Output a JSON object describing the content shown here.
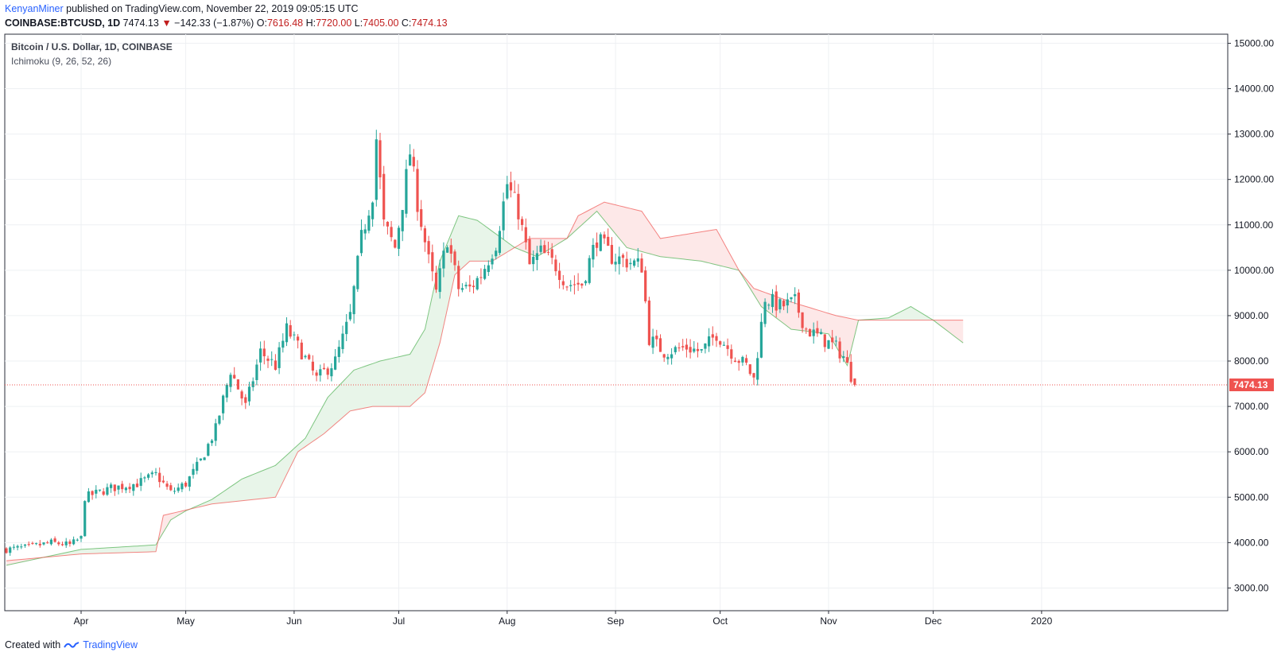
{
  "header": {
    "author": "KenyanMiner",
    "published_text": "published on TradingView.com, November 22, 2019 09:05:15 UTC",
    "symbol": "COINBASE:BTCUSD, 1D",
    "last": "7474.13",
    "change": "−142.33 (−1.87%)",
    "open_label": "O:",
    "open": "7616.48",
    "high_label": "H:",
    "high": "7720.00",
    "low_label": "L:",
    "low": "7405.00",
    "close_label": "C:",
    "close": "7474.13"
  },
  "legend": {
    "title": "Bitcoin / U.S. Dollar, 1D, COINBASE",
    "indicator": "Ichimoku (9, 26, 52, 26)"
  },
  "footer": {
    "created": "Created with",
    "brand": "TradingView"
  },
  "colors": {
    "up": "#26a69a",
    "down": "#ef5350",
    "cloud_up": "#e8f5e9",
    "cloud_down": "#fde8e8",
    "span_a": "#4caf50",
    "span_b": "#ef5350",
    "price_line": "#ef5350",
    "grid": "#eef0f3"
  },
  "chart_data": {
    "type": "candlestick",
    "title": "Bitcoin / U.S. Dollar, 1D, COINBASE",
    "ylim": [
      2500,
      15200
    ],
    "y_ticks": [
      "3000.00",
      "4000.00",
      "5000.00",
      "6000.00",
      "7000.00",
      "8000.00",
      "9000.00",
      "10000.00",
      "11000.00",
      "12000.00",
      "13000.00",
      "14000.00",
      "15000.00"
    ],
    "x_ticks": [
      "Apr",
      "May",
      "Jun",
      "Jul",
      "Aug",
      "Sep",
      "Oct",
      "Nov",
      "Dec",
      "2020"
    ],
    "last_price": "7474.13",
    "close_path": [
      [
        0,
        3850
      ],
      [
        6,
        3900
      ],
      [
        12,
        4000
      ],
      [
        17,
        3950
      ],
      [
        20,
        4100
      ],
      [
        21,
        5000
      ],
      [
        28,
        5200
      ],
      [
        35,
        5300
      ],
      [
        40,
        5500
      ],
      [
        44,
        5100
      ],
      [
        48,
        5300
      ],
      [
        52,
        5800
      ],
      [
        56,
        6500
      ],
      [
        60,
        7800
      ],
      [
        64,
        7000
      ],
      [
        68,
        8200
      ],
      [
        72,
        7900
      ],
      [
        75,
        8700
      ],
      [
        79,
        8200
      ],
      [
        83,
        7600
      ],
      [
        88,
        8000
      ],
      [
        92,
        9000
      ],
      [
        95,
        10700
      ],
      [
        98,
        11700
      ],
      [
        99,
        12900
      ],
      [
        101,
        11000
      ],
      [
        104,
        10500
      ],
      [
        106,
        11500
      ],
      [
        108,
        12600
      ],
      [
        110,
        11500
      ],
      [
        113,
        10200
      ],
      [
        115,
        9500
      ],
      [
        118,
        10700
      ],
      [
        121,
        9600
      ],
      [
        124,
        9600
      ],
      [
        127,
        9900
      ],
      [
        131,
        10600
      ],
      [
        134,
        11900
      ],
      [
        137,
        11300
      ],
      [
        140,
        10100
      ],
      [
        143,
        10400
      ],
      [
        147,
        10100
      ],
      [
        150,
        9700
      ],
      [
        154,
        9700
      ],
      [
        158,
        10700
      ],
      [
        162,
        10300
      ],
      [
        166,
        10200
      ],
      [
        170,
        10100
      ],
      [
        172,
        8500
      ],
      [
        176,
        8200
      ],
      [
        182,
        8300
      ],
      [
        186,
        8200
      ],
      [
        190,
        8600
      ],
      [
        195,
        8100
      ],
      [
        198,
        7900
      ],
      [
        200,
        7600
      ],
      [
        201,
        8200
      ],
      [
        203,
        9400
      ],
      [
        207,
        9200
      ],
      [
        211,
        9300
      ],
      [
        214,
        8700
      ],
      [
        218,
        8500
      ],
      [
        222,
        8300
      ],
      [
        224,
        8100
      ],
      [
        227,
        7474
      ]
    ],
    "ichimoku": {
      "span_a": [
        [
          0,
          3500
        ],
        [
          20,
          3850
        ],
        [
          40,
          3950
        ],
        [
          44,
          4500
        ],
        [
          48,
          4700
        ],
        [
          55,
          4950
        ],
        [
          63,
          5400
        ],
        [
          72,
          5700
        ],
        [
          80,
          6300
        ],
        [
          86,
          7200
        ],
        [
          93,
          7800
        ],
        [
          100,
          8000
        ],
        [
          108,
          8150
        ],
        [
          112,
          8700
        ],
        [
          116,
          10200
        ],
        [
          121,
          11200
        ],
        [
          126,
          11100
        ],
        [
          131,
          10800
        ],
        [
          136,
          10500
        ],
        [
          142,
          10300
        ],
        [
          150,
          10700
        ],
        [
          158,
          11300
        ],
        [
          166,
          10500
        ],
        [
          175,
          10300
        ],
        [
          186,
          10200
        ],
        [
          196,
          10000
        ],
        [
          202,
          9200
        ],
        [
          210,
          8700
        ],
        [
          220,
          8600
        ],
        [
          225,
          7900
        ],
        [
          228,
          8900
        ],
        [
          236,
          8950
        ],
        [
          242,
          9200
        ],
        [
          248,
          8900
        ],
        [
          256,
          8400
        ]
      ],
      "span_b": [
        [
          0,
          3600
        ],
        [
          20,
          3750
        ],
        [
          40,
          3800
        ],
        [
          42,
          4600
        ],
        [
          55,
          4850
        ],
        [
          72,
          5000
        ],
        [
          78,
          6000
        ],
        [
          85,
          6400
        ],
        [
          92,
          6900
        ],
        [
          98,
          7000
        ],
        [
          108,
          7000
        ],
        [
          112,
          7300
        ],
        [
          116,
          8400
        ],
        [
          120,
          9900
        ],
        [
          124,
          10200
        ],
        [
          130,
          10200
        ],
        [
          140,
          10700
        ],
        [
          150,
          10700
        ],
        [
          153,
          11200
        ],
        [
          160,
          11500
        ],
        [
          170,
          11300
        ],
        [
          175,
          10700
        ],
        [
          190,
          10900
        ],
        [
          196,
          10000
        ],
        [
          200,
          9600
        ],
        [
          210,
          9300
        ],
        [
          222,
          9000
        ],
        [
          228,
          8900
        ],
        [
          256,
          8900
        ]
      ]
    }
  }
}
